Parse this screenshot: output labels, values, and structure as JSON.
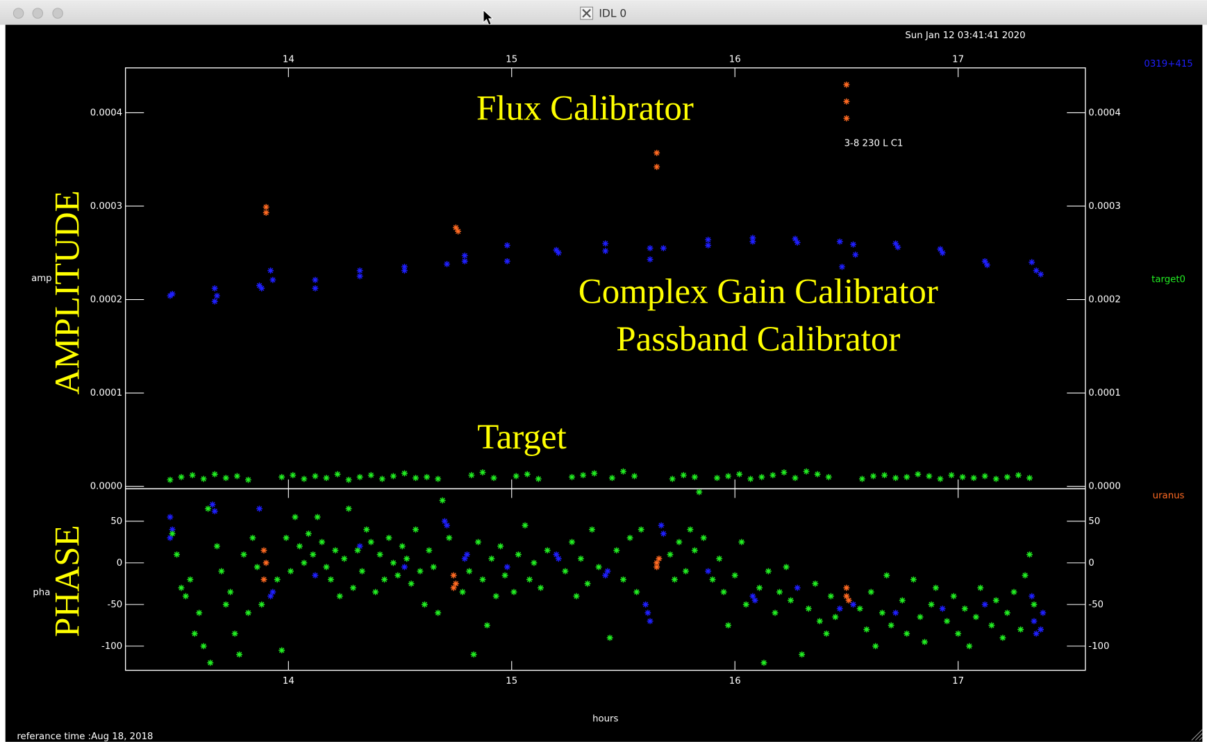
{
  "window": {
    "title": "IDL 0"
  },
  "timestamp": "Sun Jan 12 03:41:41 2020",
  "reference_time": "referance time :Aug 18, 2018",
  "annotations": [
    "Flux Calibrator",
    "Complex Gain Calibrator",
    "Passband Calibrator",
    "Target"
  ],
  "panel_labels": [
    "AMPLITUDE",
    "PHASE"
  ],
  "chart_data": [
    {
      "type": "scatter",
      "ylabel": "amp",
      "annotation": "3-8 230 L C1",
      "xlim": [
        13.27,
        17.57
      ],
      "xticks": [
        14,
        15,
        16,
        17
      ],
      "ylim": [
        -2.5e-06,
        0.000448
      ],
      "yticks": [
        {
          "value": 0,
          "label": "0.0000"
        },
        0.0001,
        0.0002,
        0.0003,
        0.0004
      ],
      "series": [
        {
          "name": "0319+415",
          "color": "#1f1fff",
          "x": [
            13.47,
            13.48,
            13.67,
            13.68,
            13.67,
            13.87,
            13.88,
            13.92,
            13.93,
            14.12,
            14.12,
            14.32,
            14.32,
            14.52,
            14.52,
            14.71,
            14.79,
            14.79,
            14.98,
            14.98,
            15.2,
            15.21,
            15.42,
            15.42,
            15.62,
            15.62,
            15.68,
            15.88,
            15.88,
            16.08,
            16.08,
            16.27,
            16.28,
            16.47,
            16.48,
            16.53,
            16.54,
            16.72,
            16.73,
            16.92,
            16.93,
            17.12,
            17.13,
            17.33,
            17.35,
            17.37
          ],
          "values": [
            0.000204,
            0.000206,
            0.000212,
            0.000204,
            0.000198,
            0.000215,
            0.000212,
            0.000231,
            0.000221,
            0.000221,
            0.000212,
            0.000231,
            0.000225,
            0.000235,
            0.000231,
            0.000238,
            0.000247,
            0.000241,
            0.000258,
            0.000241,
            0.000253,
            0.00025,
            0.00026,
            0.000252,
            0.000255,
            0.000243,
            0.000255,
            0.000264,
            0.000258,
            0.000266,
            0.000262,
            0.000265,
            0.000261,
            0.000262,
            0.000235,
            0.000259,
            0.000248,
            0.00026,
            0.000256,
            0.000254,
            0.00025,
            0.000241,
            0.000237,
            0.00024,
            0.000231,
            0.000227
          ]
        },
        {
          "name": "target0",
          "color": "#22ee22",
          "x": [
            13.47,
            13.52,
            13.57,
            13.62,
            13.67,
            13.72,
            13.77,
            13.82,
            13.97,
            14.02,
            14.07,
            14.12,
            14.17,
            14.22,
            14.27,
            14.32,
            14.37,
            14.42,
            14.47,
            14.52,
            14.57,
            14.62,
            14.67,
            14.82,
            14.87,
            14.92,
            15.02,
            15.07,
            15.12,
            15.27,
            15.32,
            15.37,
            15.45,
            15.5,
            15.55,
            15.72,
            15.77,
            15.82,
            15.92,
            15.97,
            16.02,
            16.07,
            16.12,
            16.17,
            16.22,
            16.27,
            16.32,
            16.37,
            16.42,
            16.57,
            16.62,
            16.67,
            16.72,
            16.77,
            16.82,
            16.87,
            16.92,
            16.97,
            17.02,
            17.07,
            17.12,
            17.17,
            17.22,
            17.27,
            17.32
          ],
          "values": [
            7e-06,
            1e-05,
            1.2e-05,
            8e-06,
            1.3e-05,
            9e-06,
            1.1e-05,
            7e-06,
            1e-05,
            1.2e-05,
            8e-06,
            1.1e-05,
            9e-06,
            1.3e-05,
            7e-06,
            1e-05,
            1.2e-05,
            8e-06,
            1.1e-05,
            1.4e-05,
            9e-06,
            1e-05,
            8e-06,
            1.2e-05,
            1.5e-05,
            9e-06,
            1.1e-05,
            1.3e-05,
            8e-06,
            1e-05,
            1.2e-05,
            1.4e-05,
            9e-06,
            1.6e-05,
            1.1e-05,
            8e-06,
            1.2e-05,
            1e-05,
            9e-06,
            1.1e-05,
            1.3e-05,
            8e-06,
            1e-05,
            1.2e-05,
            1.5e-05,
            9e-06,
            1.6e-05,
            1.3e-05,
            1e-05,
            8e-06,
            1.1e-05,
            1.2e-05,
            9e-06,
            1e-05,
            1.3e-05,
            1.1e-05,
            8e-06,
            1.2e-05,
            1e-05,
            9e-06,
            1.1e-05,
            8e-06,
            1e-05,
            1.2e-05,
            9e-06
          ]
        },
        {
          "name": "uranus",
          "color": "#ff6a22",
          "x": [
            13.9,
            13.9,
            14.75,
            14.76,
            15.65,
            15.65,
            16.5,
            16.5,
            16.5
          ],
          "values": [
            0.000299,
            0.000293,
            0.000277,
            0.000273,
            0.000357,
            0.000342,
            0.00043,
            0.000412,
            0.000394
          ]
        }
      ]
    },
    {
      "type": "scatter",
      "ylabel": "pha",
      "xlabel": "hours",
      "xlim": [
        13.27,
        17.57
      ],
      "xticks": [
        14,
        15,
        16,
        17
      ],
      "ylim": [
        -129,
        89
      ],
      "yticks": [
        -100,
        -50,
        0,
        50
      ],
      "series": [
        {
          "color": "#1f1fff",
          "x": [
            13.47,
            13.48,
            13.47,
            13.66,
            13.67,
            13.87,
            13.93,
            13.92,
            14.12,
            14.32,
            14.52,
            14.71,
            14.7,
            14.79,
            14.8,
            14.98,
            15.2,
            15.21,
            15.42,
            15.43,
            15.6,
            15.61,
            15.62,
            15.67,
            15.68,
            15.88,
            16.08,
            16.09,
            16.28,
            16.47,
            16.53,
            16.72,
            16.93,
            17.12,
            17.33,
            17.34,
            17.35,
            17.37,
            17.38
          ],
          "values": [
            55,
            40,
            30,
            70,
            62,
            65,
            -35,
            -40,
            -15,
            20,
            -5,
            45,
            50,
            5,
            10,
            -5,
            10,
            5,
            -15,
            -10,
            -50,
            -60,
            -70,
            45,
            35,
            -10,
            -40,
            -45,
            -30,
            -55,
            -50,
            -60,
            -55,
            -50,
            -40,
            -70,
            -85,
            -80,
            -60
          ]
        },
        {
          "color": "#22ee22",
          "x": [
            13.48,
            13.5,
            13.52,
            13.54,
            13.56,
            13.58,
            13.6,
            13.62,
            13.64,
            13.65,
            13.68,
            13.7,
            13.72,
            13.74,
            13.76,
            13.78,
            13.8,
            13.82,
            13.84,
            13.86,
            13.88,
            13.95,
            13.97,
            13.99,
            14.01,
            14.03,
            14.05,
            14.07,
            14.09,
            14.11,
            14.13,
            14.15,
            14.17,
            14.19,
            14.21,
            14.23,
            14.25,
            14.27,
            14.29,
            14.31,
            14.33,
            14.35,
            14.37,
            14.39,
            14.41,
            14.43,
            14.45,
            14.47,
            14.49,
            14.51,
            14.53,
            14.55,
            14.57,
            14.59,
            14.61,
            14.63,
            14.65,
            14.67,
            14.69,
            14.72,
            14.78,
            14.81,
            14.83,
            14.85,
            14.87,
            14.89,
            14.91,
            14.93,
            14.95,
            14.97,
            15.01,
            15.03,
            15.06,
            15.08,
            15.1,
            15.13,
            15.16,
            15.24,
            15.27,
            15.29,
            15.31,
            15.34,
            15.36,
            15.39,
            15.44,
            15.47,
            15.5,
            15.53,
            15.56,
            15.58,
            15.71,
            15.73,
            15.75,
            15.78,
            15.8,
            15.82,
            15.84,
            15.86,
            15.9,
            15.93,
            15.95,
            15.97,
            16.0,
            16.03,
            16.05,
            16.11,
            16.13,
            16.15,
            16.18,
            16.2,
            16.23,
            16.25,
            16.3,
            16.33,
            16.36,
            16.38,
            16.41,
            16.43,
            16.45,
            16.56,
            16.59,
            16.61,
            16.63,
            16.66,
            16.68,
            16.7,
            16.75,
            16.77,
            16.8,
            16.83,
            16.85,
            16.88,
            16.9,
            16.95,
            16.98,
            17.0,
            17.03,
            17.05,
            17.08,
            17.1,
            17.15,
            17.17,
            17.2,
            17.22,
            17.25,
            17.28,
            17.3,
            17.32,
            17.34
          ],
          "values": [
            35,
            10,
            -30,
            -40,
            -20,
            -85,
            -60,
            -100,
            65,
            -120,
            20,
            -10,
            -50,
            -35,
            -85,
            -110,
            10,
            -60,
            30,
            -5,
            -50,
            -20,
            -105,
            30,
            -10,
            55,
            20,
            0,
            35,
            10,
            55,
            25,
            -5,
            -20,
            15,
            -40,
            5,
            65,
            -30,
            15,
            -10,
            40,
            25,
            -35,
            10,
            -20,
            30,
            0,
            -15,
            20,
            5,
            -25,
            40,
            -10,
            -50,
            15,
            -5,
            -60,
            75,
            30,
            -35,
            -10,
            -110,
            25,
            -20,
            -75,
            5,
            -40,
            20,
            -15,
            -35,
            10,
            45,
            -20,
            0,
            -30,
            15,
            -10,
            25,
            -40,
            5,
            -25,
            40,
            -5,
            -90,
            15,
            -20,
            30,
            -35,
            40,
            10,
            -20,
            25,
            -10,
            40,
            15,
            85,
            30,
            -20,
            5,
            -35,
            -75,
            -15,
            25,
            -50,
            -30,
            -120,
            -10,
            -60,
            -35,
            -5,
            -45,
            -110,
            -55,
            -25,
            -70,
            -85,
            -40,
            -65,
            -55,
            -80,
            -35,
            -100,
            -60,
            -15,
            -75,
            -45,
            -85,
            -20,
            -65,
            -95,
            -50,
            -30,
            -70,
            -40,
            -85,
            -55,
            -100,
            -65,
            -30,
            -75,
            -45,
            -90,
            -60,
            -35,
            -80,
            -15,
            10,
            -50
          ]
        },
        {
          "color": "#ff6a22",
          "x": [
            13.89,
            13.9,
            13.89,
            14.74,
            14.75,
            14.74,
            15.65,
            15.66,
            15.65,
            16.5,
            16.51,
            16.5
          ],
          "values": [
            15,
            0,
            -20,
            -15,
            -25,
            -30,
            0,
            5,
            -5,
            -30,
            -45,
            -40
          ]
        }
      ]
    }
  ]
}
